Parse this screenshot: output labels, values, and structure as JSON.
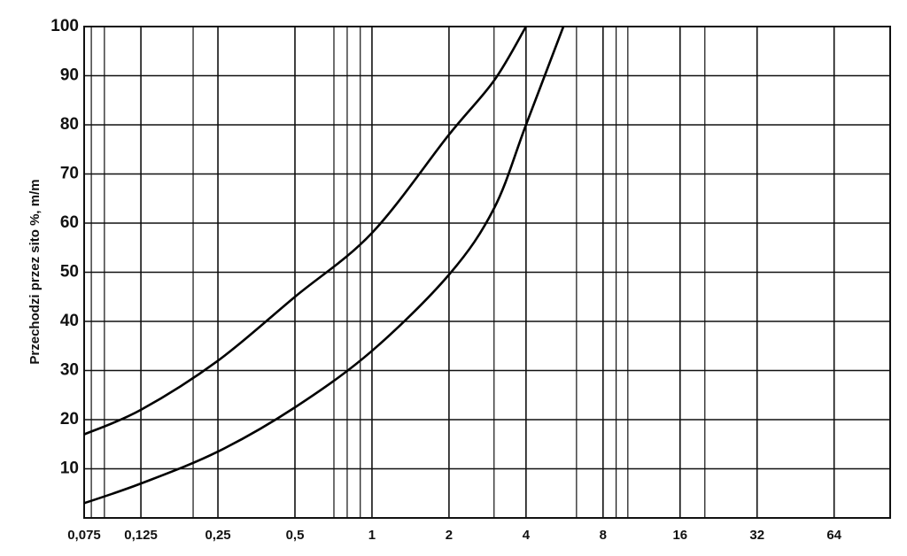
{
  "chart_data": {
    "type": "line",
    "y_label": "Przechodzi przez sito %, m/m",
    "xscale": "log",
    "xlim": [
      0.075,
      106
    ],
    "ylim": [
      0,
      100
    ],
    "xticks": [
      {
        "value": 0.075,
        "label": "0,075"
      },
      {
        "value": 0.125,
        "label": "0,125"
      },
      {
        "value": 0.25,
        "label": "0,25"
      },
      {
        "value": 0.5,
        "label": "0,5"
      },
      1,
      2,
      4,
      8,
      16,
      32,
      64
    ],
    "xgrid_minor": [
      0.08,
      0.09,
      0.2,
      0.71,
      0.8,
      0.9,
      3,
      6.3,
      9,
      10,
      20
    ],
    "yticks": [
      10,
      20,
      30,
      40,
      50,
      60,
      70,
      80,
      90,
      100
    ],
    "grid": true,
    "series": [
      {
        "color": "#000000",
        "x": [
          0.075,
          0.125,
          0.25,
          0.5,
          1,
          2,
          3,
          4
        ],
        "values": [
          17,
          22,
          32,
          45,
          58,
          78,
          89,
          100
        ]
      },
      {
        "color": "#000000",
        "x": [
          0.075,
          0.125,
          0.25,
          0.5,
          1,
          2,
          3,
          4,
          5.6
        ],
        "values": [
          3,
          7,
          13.5,
          22.5,
          34,
          49.5,
          63,
          80,
          100
        ]
      }
    ]
  }
}
